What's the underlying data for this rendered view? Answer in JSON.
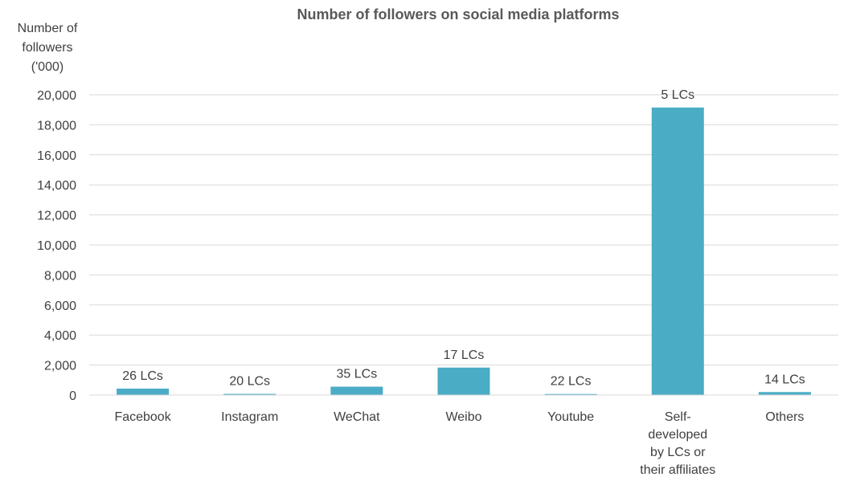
{
  "chart_data": {
    "type": "bar",
    "title": "Number of followers on social media platforms",
    "ylabel": "Number of\nfollowers\n('000)",
    "xlabel": "",
    "categories": [
      [
        "Facebook"
      ],
      [
        "Instagram"
      ],
      [
        "WeChat"
      ],
      [
        "Weibo"
      ],
      [
        "Youtube"
      ],
      [
        "Self-",
        "developed",
        "by LCs or",
        "their affiliates"
      ],
      [
        "Others"
      ]
    ],
    "values": [
      430,
      80,
      560,
      1830,
      70,
      19150,
      200
    ],
    "data_labels": [
      "26 LCs",
      "20 LCs",
      "35 LCs",
      "17 LCs",
      "22 LCs",
      "5 LCs",
      "14 LCs"
    ],
    "ylim": [
      0,
      20000
    ],
    "yticks": [
      0,
      2000,
      4000,
      6000,
      8000,
      10000,
      12000,
      14000,
      16000,
      18000,
      20000
    ],
    "ytick_labels": [
      "0",
      "2,000",
      "4,000",
      "6,000",
      "8,000",
      "10,000",
      "12,000",
      "14,000",
      "16,000",
      "18,000",
      "20,000"
    ],
    "bar_color": "#4BACC6",
    "grid": true,
    "legend": "none"
  }
}
